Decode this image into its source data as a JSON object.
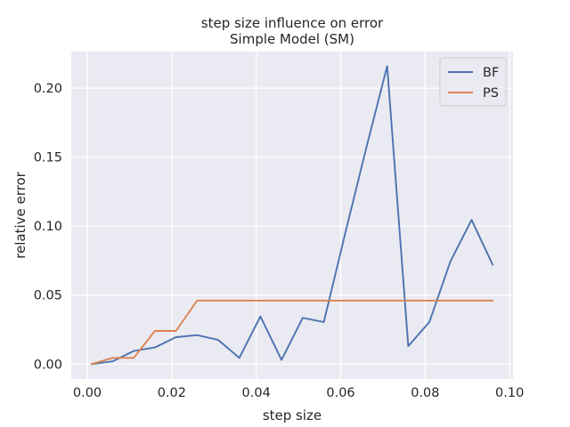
{
  "chart_data": {
    "type": "line",
    "title": "step size influence on error",
    "subtitle": "Simple Model (SM)",
    "xlabel": "step size",
    "ylabel": "relative error",
    "xlim": [
      -0.0038,
      0.1008
    ],
    "ylim": [
      -0.0108,
      0.2265
    ],
    "xticks": [
      0.0,
      0.02,
      0.04,
      0.06,
      0.08,
      0.1
    ],
    "xtick_labels": [
      "0.00",
      "0.02",
      "0.04",
      "0.06",
      "0.08",
      "0.10"
    ],
    "yticks": [
      0.0,
      0.05,
      0.1,
      0.15,
      0.2
    ],
    "ytick_labels": [
      "0.00",
      "0.05",
      "0.10",
      "0.15",
      "0.20"
    ],
    "grid": true,
    "background": "#eaeaf2",
    "legend_position": "top-right",
    "x": [
      0.001,
      0.006,
      0.011,
      0.016,
      0.021,
      0.026,
      0.031,
      0.036,
      0.041,
      0.046,
      0.051,
      0.056,
      0.061,
      0.066,
      0.071,
      0.076,
      0.081,
      0.086,
      0.091,
      0.096
    ],
    "series": [
      {
        "name": "BF",
        "color": "#4c72b0",
        "values": [
          0.0,
          0.002,
          0.0095,
          0.012,
          0.0195,
          0.021,
          0.0175,
          0.0045,
          0.0345,
          0.003,
          0.0335,
          0.0305,
          0.094,
          0.156,
          0.216,
          0.013,
          0.0305,
          0.0745,
          0.1045,
          0.072
        ]
      },
      {
        "name": "PS",
        "color": "#dd8452",
        "values": [
          0.0,
          0.0045,
          0.0045,
          0.024,
          0.024,
          0.046,
          0.046,
          0.046,
          0.046,
          0.046,
          0.046,
          0.046,
          0.046,
          0.046,
          0.046,
          0.046,
          0.046,
          0.046,
          0.046,
          0.046
        ]
      }
    ]
  }
}
